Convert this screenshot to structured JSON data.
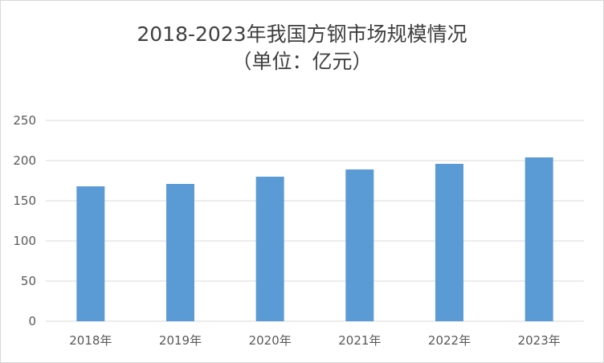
{
  "chart_data": {
    "type": "bar",
    "title_line1": "2018-2023年我国方钢市场规模情况",
    "title_line2": "（单位：亿元）",
    "categories": [
      "2018年",
      "2019年",
      "2020年",
      "2021年",
      "2022年",
      "2023年"
    ],
    "values": [
      168,
      171,
      180,
      189,
      196,
      204
    ],
    "ylim": [
      0,
      250
    ],
    "yticks": [
      0,
      50,
      100,
      150,
      200,
      250
    ],
    "grid": true,
    "legend": "none",
    "colors": {
      "bar": "#5b9bd5",
      "grid": "#d9d9d9",
      "text": "#595959",
      "title": "#404040"
    }
  }
}
